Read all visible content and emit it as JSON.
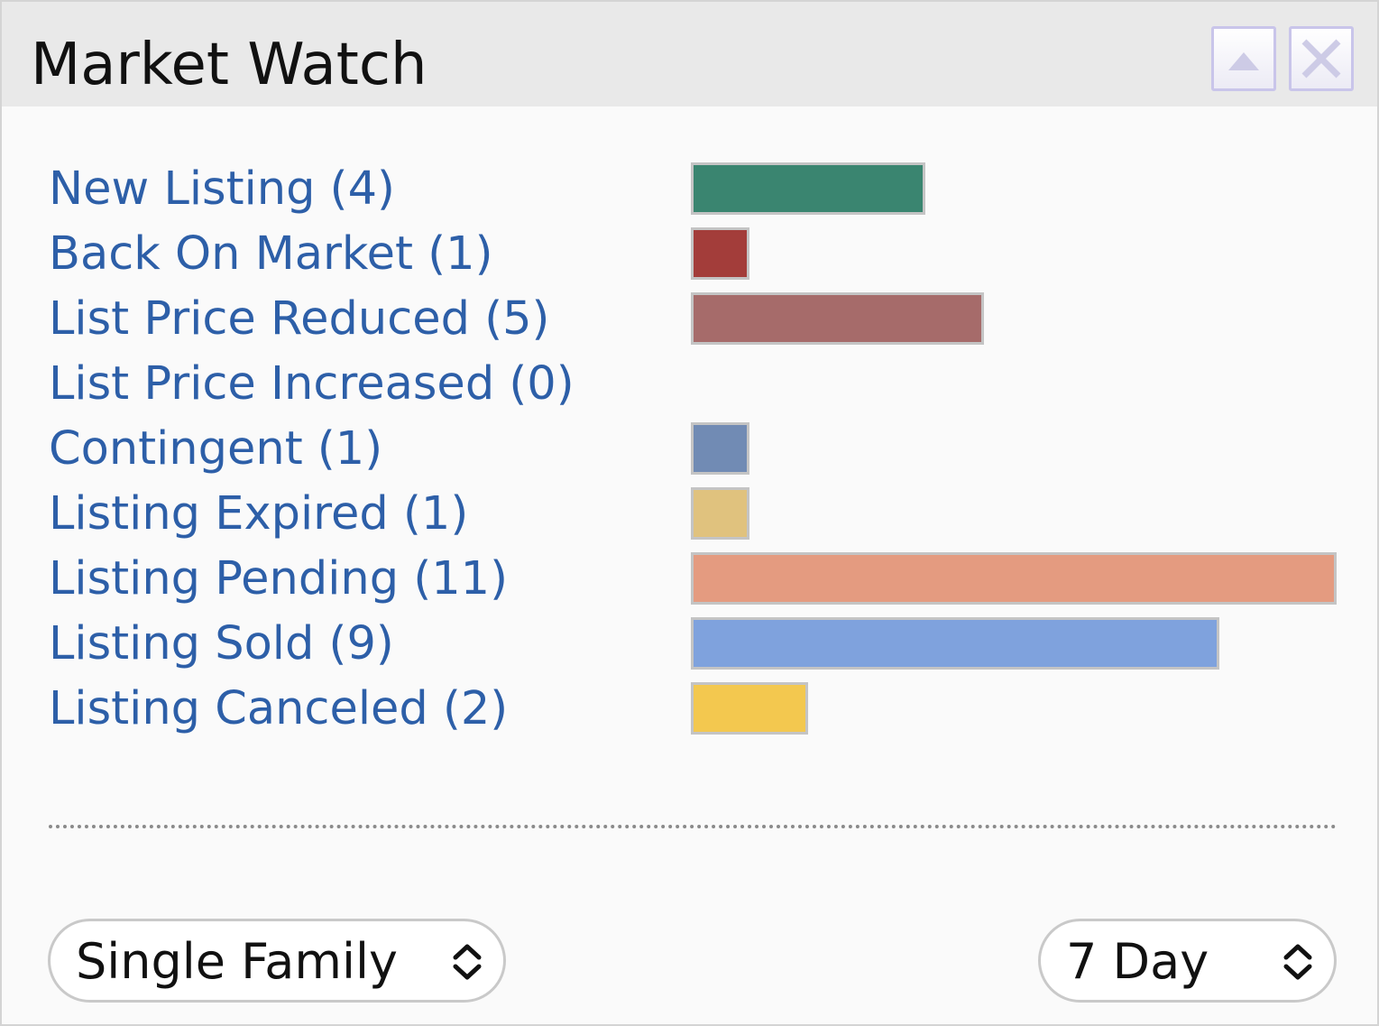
{
  "widget": {
    "title": "Market Watch"
  },
  "header_buttons": {
    "collapse_icon": "triangle-up-icon",
    "close_icon": "close-x-icon"
  },
  "chart_data": {
    "type": "bar",
    "orientation": "horizontal",
    "categories": [
      "New Listing (4)",
      "Back On Market (1)",
      "List Price Reduced (5)",
      "List Price Increased (0)",
      "Contingent (1)",
      "Listing Expired (1)",
      "Listing Pending (11)",
      "Listing Sold (9)",
      "Listing Canceled (2)"
    ],
    "values": [
      4,
      1,
      5,
      0,
      1,
      1,
      11,
      9,
      2
    ],
    "colors": [
      "#3a8570",
      "#a33d3a",
      "#a66b6a",
      "#999999",
      "#718bb4",
      "#e0c27e",
      "#e49b80",
      "#7fa2dd",
      "#f3c84f"
    ],
    "bar_border_color": "#c4c4c4",
    "xlim": [
      0,
      11
    ]
  },
  "filters": {
    "property_type": {
      "value": "Single Family",
      "icon": "up-down-chevron-icon"
    },
    "period": {
      "value": "7 Day",
      "icon": "up-down-chevron-icon"
    }
  }
}
